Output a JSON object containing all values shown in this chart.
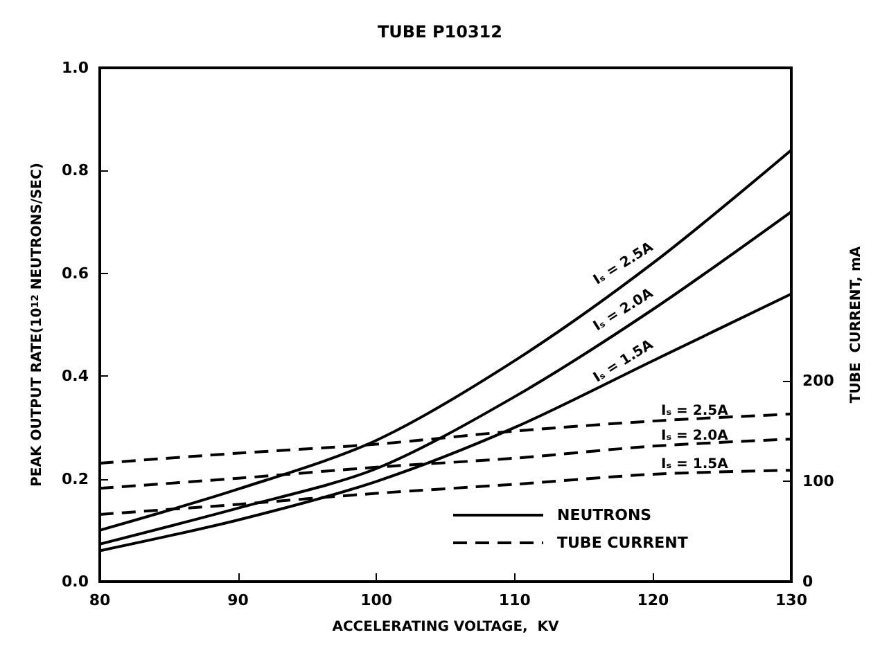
{
  "chart_data": {
    "type": "line",
    "title": "TUBE P10312",
    "xlabel": "ACCELERATING VOLTAGE,  KV",
    "ylabel": "PEAK OUTPUT RATE(10$^{12}$ NEUTRONS/SEC)",
    "y2label": "TUBE  CURRENT, mA",
    "x": [
      80,
      90,
      100,
      110,
      120,
      130
    ],
    "series": [
      {
        "name": "Iₛ = 2.5A",
        "color": "#000000",
        "line_style": "solid",
        "values": [
          0.1,
          0.18,
          0.275,
          0.43,
          0.62,
          0.84
        ]
      },
      {
        "name": "Iₛ = 2.0A",
        "color": "#000000",
        "line_style": "solid",
        "values": [
          0.073,
          0.143,
          0.22,
          0.36,
          0.53,
          0.72
        ]
      },
      {
        "name": "Iₛ = 1.5A",
        "color": "#000000",
        "line_style": "solid",
        "values": [
          0.06,
          0.12,
          0.195,
          0.3,
          0.43,
          0.56
        ]
      },
      {
        "name": "Iₛ = 2.5A",
        "color": "#000000",
        "line_style": "dashed",
        "axis": "y2",
        "values": [
          118,
          128,
          137,
          150,
          160,
          167
        ]
      },
      {
        "name": "Iₛ = 2.0A",
        "color": "#000000",
        "line_style": "dashed",
        "axis": "y2",
        "values": [
          93,
          103,
          114,
          123,
          135,
          142
        ]
      },
      {
        "name": "Iₛ = 1.5A",
        "color": "#000000",
        "line_style": "dashed",
        "axis": "y2",
        "values": [
          67,
          77,
          88,
          97,
          107,
          111
        ]
      }
    ],
    "annotations": [
      "NEUTRONS",
      "TUBE CURRENT"
    ],
    "xlim": [
      80,
      130
    ],
    "xticks": [
      80,
      90,
      100,
      110,
      120,
      130
    ],
    "ylim": [
      0,
      1.0
    ],
    "yticks": [
      {
        "value": 0,
        "label": "0.0"
      },
      {
        "value": 0.2,
        "label": "0.2"
      },
      {
        "value": 0.4,
        "label": "0.4"
      },
      {
        "value": 0.6,
        "label": "0.6"
      },
      {
        "value": 0.8,
        "label": "0.8"
      },
      {
        "value": 1.0,
        "label": "1.0"
      }
    ],
    "y2lim": [
      0,
      512
    ],
    "y2ticks": [
      0,
      100,
      200
    ],
    "grid": false,
    "marker": "none"
  }
}
